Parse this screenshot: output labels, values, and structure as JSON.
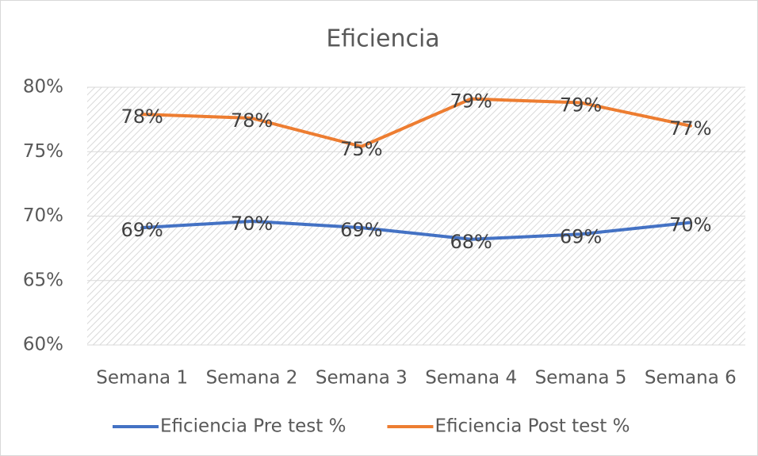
{
  "chart_data": {
    "type": "line",
    "title": "Eficiencia",
    "categories": [
      "Semana 1",
      "Semana 2",
      "Semana 3",
      "Semana 4",
      "Semana 5",
      "Semana 6"
    ],
    "series": [
      {
        "name": "Eficiencia Pre test %",
        "color": "#4472c4",
        "values": [
          69.1,
          69.6,
          69.1,
          68.2,
          68.6,
          69.5
        ],
        "value_labels": [
          "69%",
          "70%",
          "69%",
          "68%",
          "69%",
          "70%"
        ]
      },
      {
        "name": "Eficiencia Post test %",
        "color": "#ed7d31",
        "values": [
          77.9,
          77.6,
          75.4,
          79.1,
          78.8,
          77.0
        ],
        "value_labels": [
          "78%",
          "78%",
          "75%",
          "79%",
          "79%",
          "77%"
        ]
      }
    ],
    "ylim": [
      60,
      80
    ],
    "yticks": [
      {
        "value": 60,
        "label": "60%"
      },
      {
        "value": 65,
        "label": "65%"
      },
      {
        "value": 70,
        "label": "70%"
      },
      {
        "value": 75,
        "label": "75%"
      },
      {
        "value": 80,
        "label": "80%"
      }
    ],
    "grid": true,
    "legend": "bottom"
  }
}
